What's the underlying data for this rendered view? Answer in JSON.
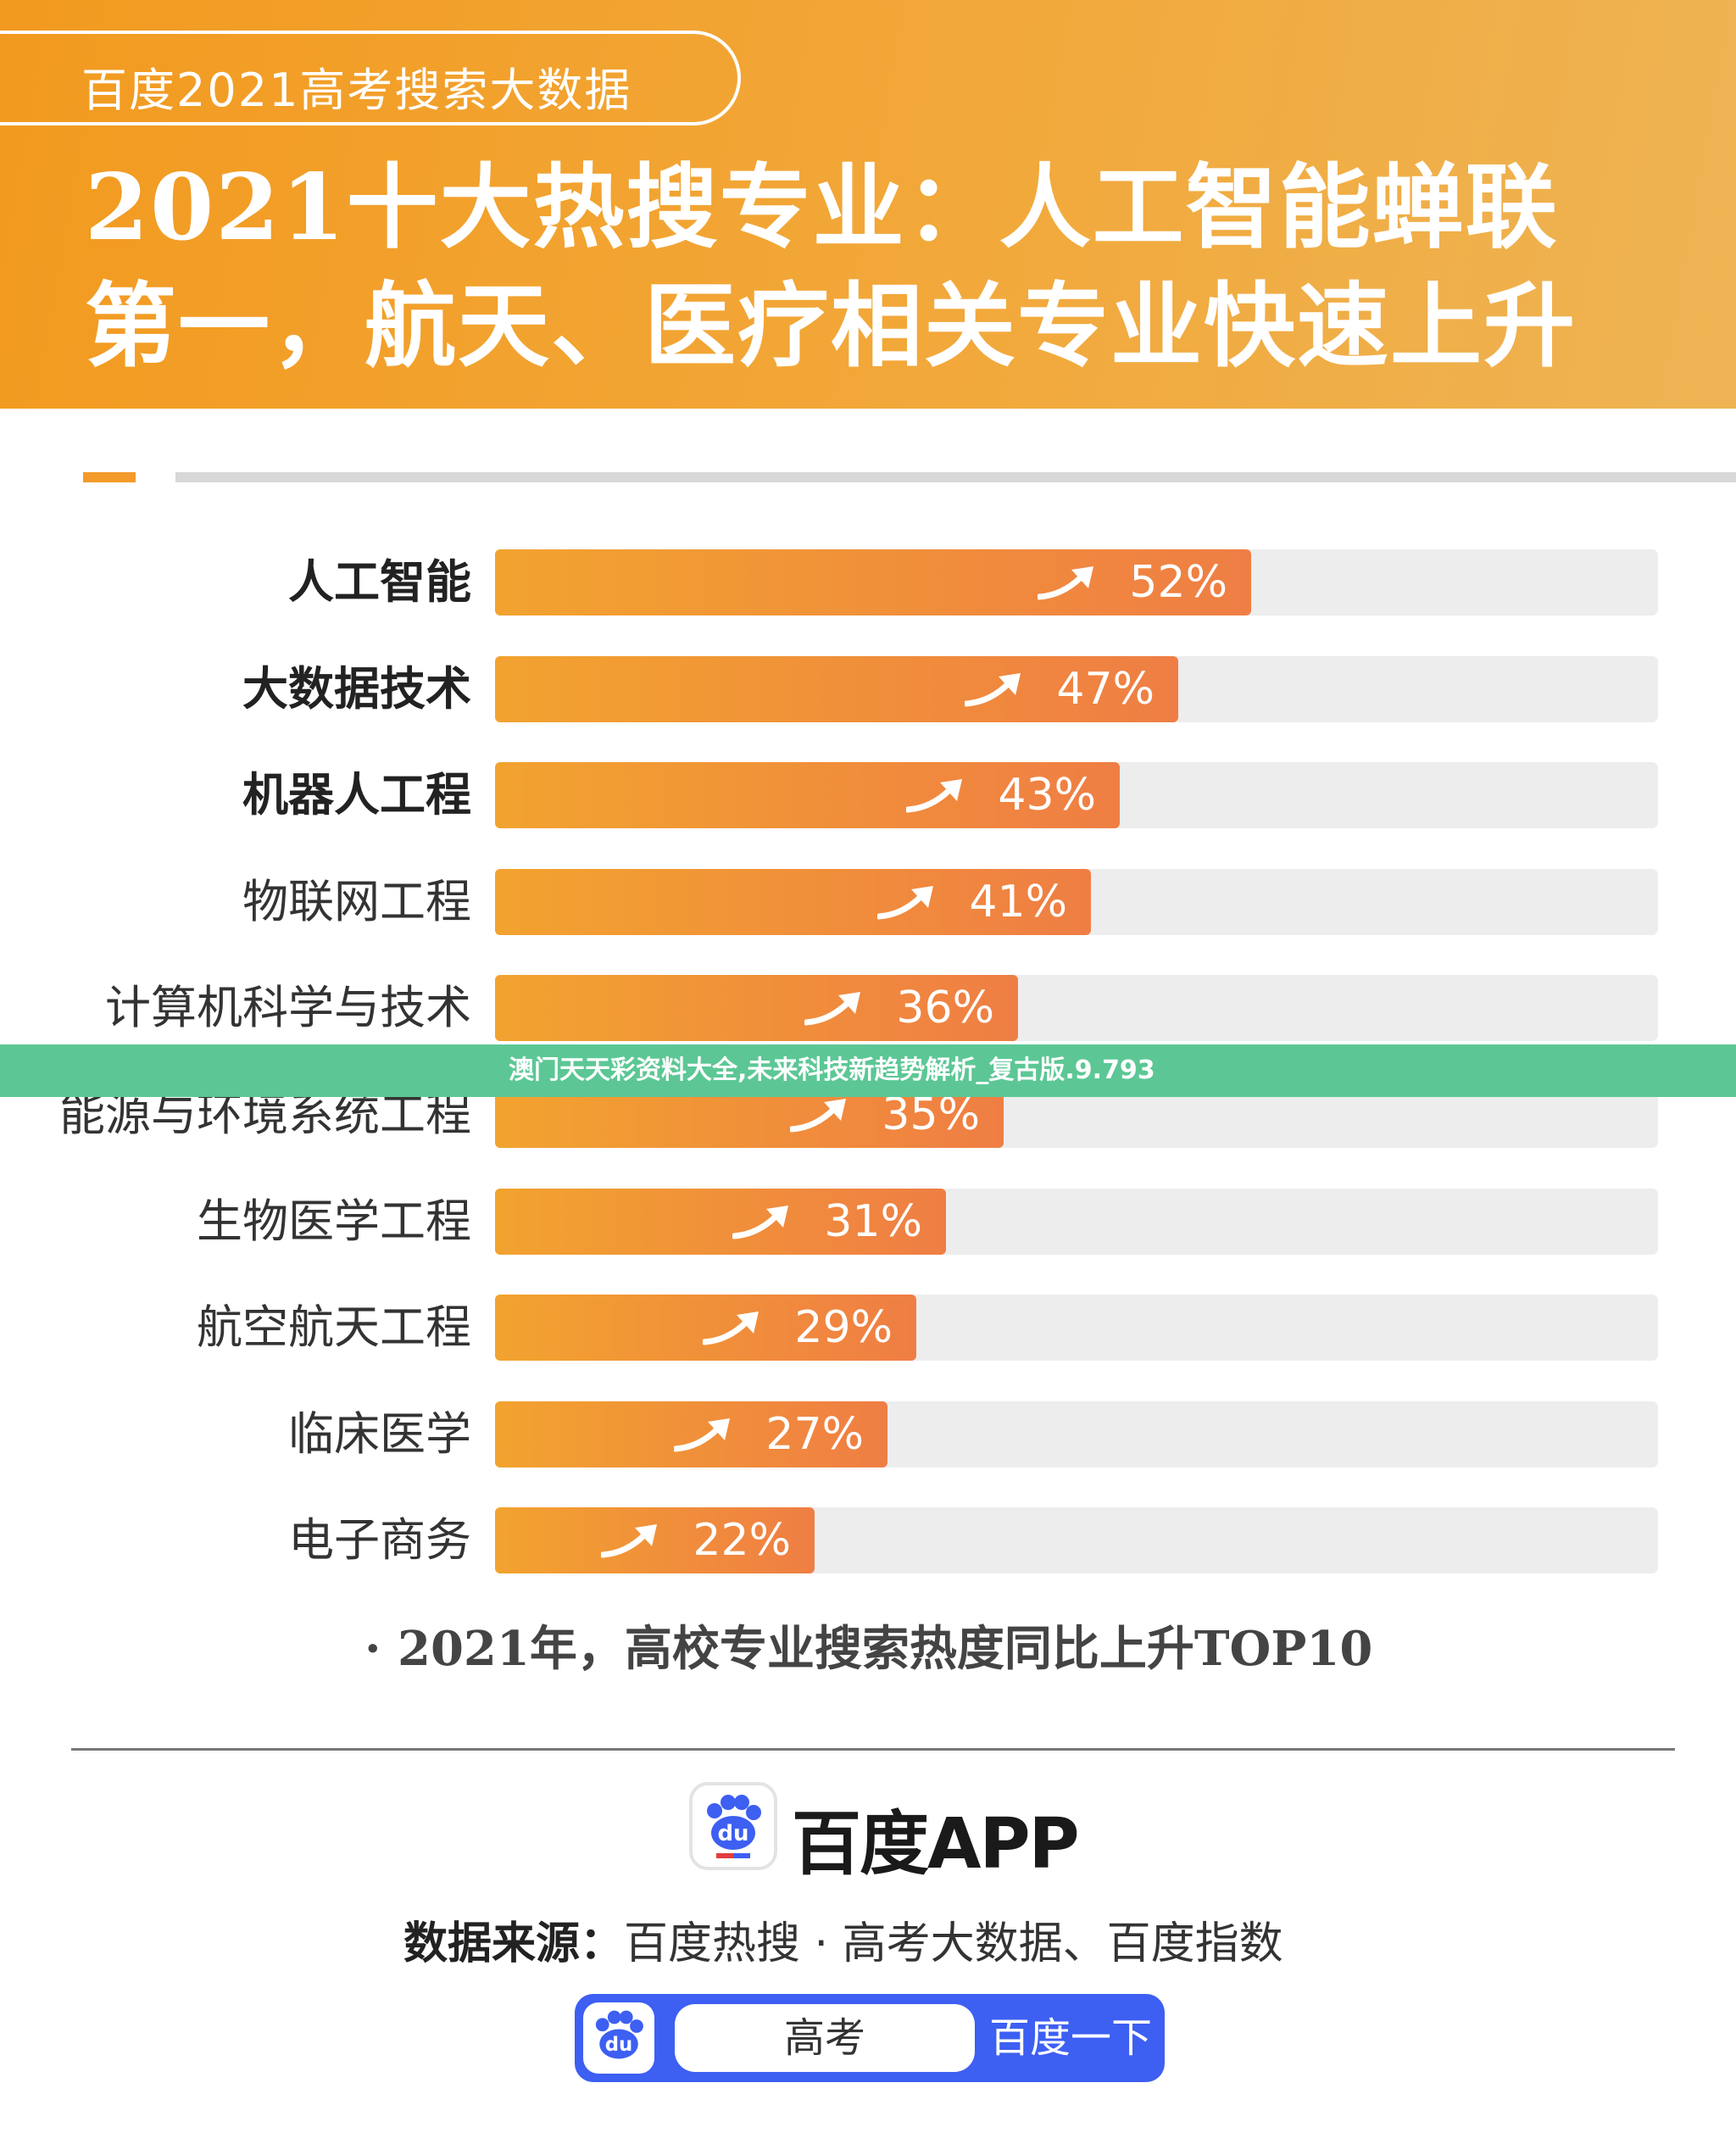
{
  "header": {
    "badge": "百度2021高考搜索大数据",
    "headline_line1": "2021十大热搜专业：人工智能蝉联",
    "headline_line2": "第一，航天、医疗相关专业快速上升"
  },
  "chart_data": {
    "type": "bar",
    "orientation": "horizontal",
    "categories": [
      "人工智能",
      "大数据技术",
      "机器人工程",
      "物联网工程",
      "计算机科学与技术",
      "能源与环境系统工程",
      "生物医学工程",
      "航空航天工程",
      "临床医学",
      "电子商务"
    ],
    "values": [
      52,
      47,
      43,
      41,
      36,
      35,
      31,
      29,
      27,
      22
    ],
    "value_labels": [
      "52%",
      "47%",
      "43%",
      "41%",
      "36%",
      "35%",
      "31%",
      "29%",
      "27%",
      "22%"
    ],
    "bold_categories": [
      true,
      true,
      true,
      false,
      false,
      false,
      false,
      false,
      false,
      false
    ],
    "xlim": [
      0,
      80
    ],
    "caption": "· 2021年，高校专业搜索热度同比上升TOP10",
    "colors": {
      "bar_start": "#f2a32f",
      "bar_end": "#ef7e44",
      "track": "#ededed"
    }
  },
  "footer": {
    "brand": "百度APP",
    "logo_glyph": "du",
    "source_label": "数据来源：",
    "source_text": "百度热搜 · 高考大数据、百度指数",
    "search_query": "高考",
    "search_button": "百度一下"
  },
  "overlay": {
    "text": "澳门天天彩资料大全,未来科技新趋势解析_复古版.9.793"
  }
}
